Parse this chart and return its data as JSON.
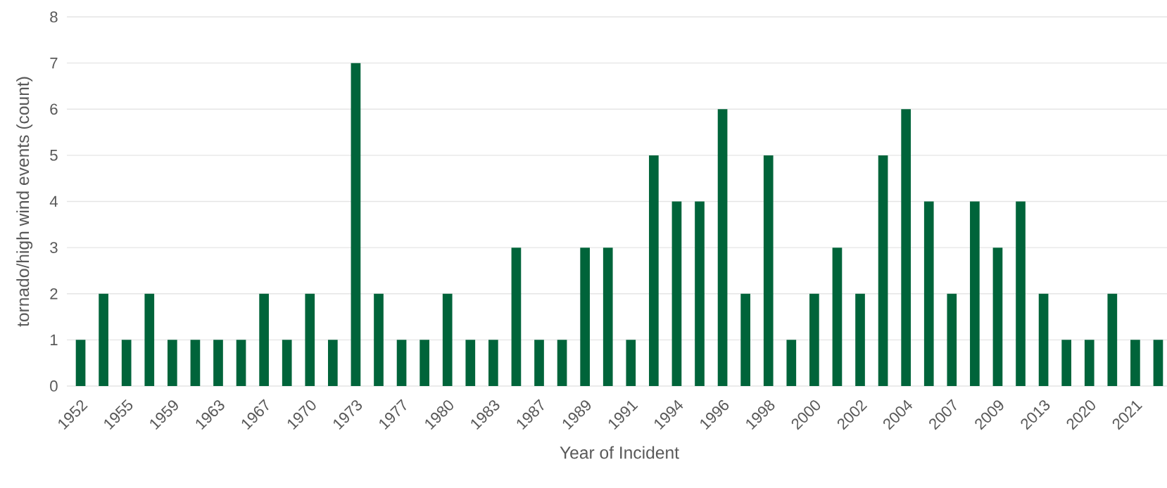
{
  "chart_data": {
    "type": "bar",
    "xlabel": "Year of Incident",
    "ylabel": "tornado/high wind events (count)",
    "categories": [
      "1952",
      null,
      "1955",
      null,
      "1959",
      null,
      "1963",
      null,
      "1967",
      null,
      "1970",
      null,
      "1973",
      null,
      "1977",
      null,
      "1980",
      null,
      "1983",
      null,
      "1987",
      null,
      "1989",
      null,
      "1991",
      null,
      "1994",
      null,
      "1996",
      null,
      "1998",
      null,
      "2000",
      null,
      "2002",
      null,
      "2004",
      null,
      "2007",
      null,
      "2009",
      null,
      "2013",
      null,
      "2020",
      null,
      "2021",
      null
    ],
    "values": [
      1,
      2,
      1,
      2,
      1,
      1,
      1,
      1,
      2,
      1,
      2,
      1,
      7,
      2,
      1,
      1,
      2,
      1,
      1,
      3,
      1,
      1,
      3,
      3,
      1,
      5,
      4,
      4,
      6,
      2,
      5,
      1,
      2,
      3,
      2,
      5,
      6,
      4,
      2,
      4,
      3,
      4,
      2,
      1,
      1,
      2,
      1,
      1
    ],
    "color": "#00643a",
    "ylim": [
      0,
      8
    ],
    "yticks": [
      0,
      1,
      2,
      3,
      4,
      5,
      6,
      7,
      8
    ],
    "grid": "y"
  }
}
